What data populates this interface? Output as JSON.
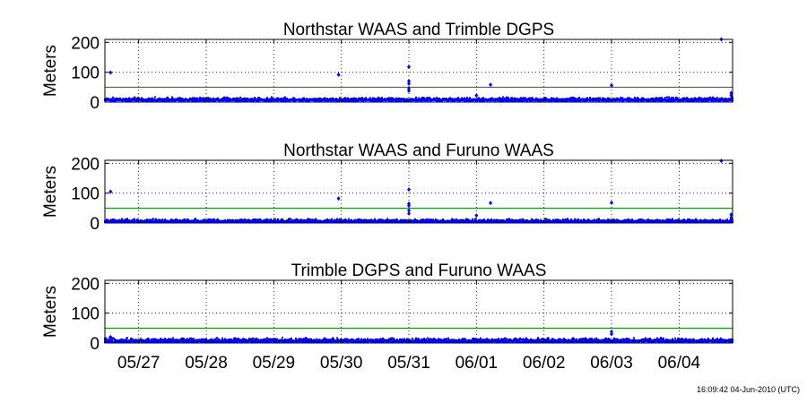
{
  "colors": {
    "points": "#0000ff",
    "threshold_line": "#008000",
    "axes": "#000000",
    "grid": "#000000",
    "background": "#ffffff"
  },
  "footer": {
    "timestamp": "16:09:42 04-Jun-2010 (UTC)"
  },
  "chart_data": [
    {
      "type": "scatter",
      "title": "Northstar WAAS and Trimble DGPS",
      "xlabel": "",
      "ylabel": "Meters",
      "ylim": [
        0,
        210
      ],
      "yticks": [
        0,
        100,
        200
      ],
      "xlim": [
        "05/26 12:00",
        "06/04 19:00"
      ],
      "xticks": [
        "05/27",
        "05/28",
        "05/29",
        "05/30",
        "05/31",
        "06/01",
        "06/02",
        "06/03",
        "06/04"
      ],
      "show_xticklabels": false,
      "grid": true,
      "threshold": 50,
      "baseline": {
        "typical_min": 4,
        "typical_max": 17
      },
      "outliers": [
        {
          "x": "05/26 14:00",
          "y": 99
        },
        {
          "x": "05/29 23:00",
          "y": 92
        },
        {
          "x": "05/31 00:00",
          "y": 118
        },
        {
          "x": "05/31 00:00",
          "y": 70
        },
        {
          "x": "05/31 00:00",
          "y": 62
        },
        {
          "x": "05/31 00:00",
          "y": 45
        },
        {
          "x": "05/31 00:00",
          "y": 38
        },
        {
          "x": "06/01 00:00",
          "y": 22
        },
        {
          "x": "06/01 05:00",
          "y": 58
        },
        {
          "x": "06/03 00:00",
          "y": 56
        },
        {
          "x": "06/04 15:00",
          "y": 210
        },
        {
          "x": "06/04 18:30",
          "y": 30
        },
        {
          "x": "06/04 18:30",
          "y": 22
        }
      ]
    },
    {
      "type": "scatter",
      "title": "Northstar WAAS and Furuno WAAS",
      "xlabel": "",
      "ylabel": "Meters",
      "ylim": [
        0,
        210
      ],
      "yticks": [
        0,
        100,
        200
      ],
      "xlim": [
        "05/26 12:00",
        "06/04 19:00"
      ],
      "xticks": [
        "05/27",
        "05/28",
        "05/29",
        "05/30",
        "05/31",
        "06/01",
        "06/02",
        "06/03",
        "06/04"
      ],
      "show_xticklabels": false,
      "grid": true,
      "threshold": 50,
      "baseline": {
        "typical_min": 2,
        "typical_max": 15
      },
      "outliers": [
        {
          "x": "05/26 14:00",
          "y": 105
        },
        {
          "x": "05/29 23:00",
          "y": 82
        },
        {
          "x": "05/31 00:00",
          "y": 112
        },
        {
          "x": "05/31 00:00",
          "y": 65
        },
        {
          "x": "05/31 00:00",
          "y": 58
        },
        {
          "x": "05/31 00:00",
          "y": 42
        },
        {
          "x": "05/31 00:00",
          "y": 32
        },
        {
          "x": "06/01 00:00",
          "y": 25
        },
        {
          "x": "06/01 05:00",
          "y": 67
        },
        {
          "x": "06/03 00:00",
          "y": 68
        },
        {
          "x": "06/04 15:00",
          "y": 208
        },
        {
          "x": "06/04 18:30",
          "y": 28
        },
        {
          "x": "06/04 18:30",
          "y": 18
        }
      ]
    },
    {
      "type": "scatter",
      "title": "Trimble DGPS and Furuno WAAS",
      "xlabel": "",
      "ylabel": "Meters",
      "ylim": [
        0,
        210
      ],
      "yticks": [
        0,
        100,
        200
      ],
      "xlim": [
        "05/26 12:00",
        "06/04 19:00"
      ],
      "xticks": [
        "05/27",
        "05/28",
        "05/29",
        "05/30",
        "05/31",
        "06/01",
        "06/02",
        "06/03",
        "06/04"
      ],
      "show_xticklabels": true,
      "grid": true,
      "threshold": 50,
      "baseline": {
        "typical_min": 3,
        "typical_max": 18
      },
      "outliers": [
        {
          "x": "05/26 14:00",
          "y": 20
        },
        {
          "x": "06/03 00:00",
          "y": 38
        },
        {
          "x": "06/03 00:00",
          "y": 30
        }
      ]
    }
  ]
}
